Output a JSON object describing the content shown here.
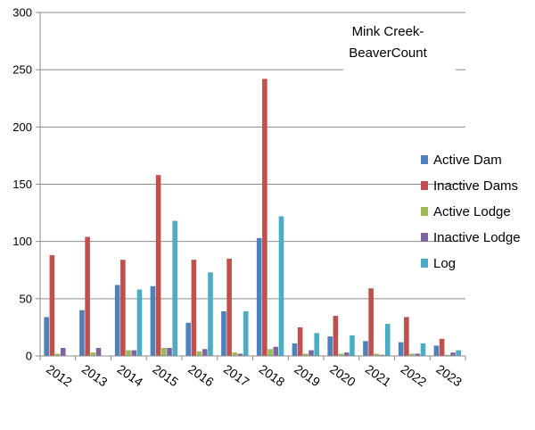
{
  "chart_data": {
    "type": "bar",
    "title_lines": [
      "Mink Creek-",
      "BeaverCount"
    ],
    "xlabel": "",
    "ylabel": "",
    "ylim": [
      0,
      300
    ],
    "yticks": [
      0,
      50,
      100,
      150,
      200,
      250,
      300
    ],
    "grid": true,
    "legend_position": "right",
    "categories": [
      "2012",
      "2013",
      "2014",
      "2015",
      "2016",
      "2017",
      "2018",
      "2019",
      "2020",
      "2021",
      "2022",
      "2023"
    ],
    "series": [
      {
        "name": "Active Dam",
        "color": "#4F81BD",
        "values": [
          34,
          40,
          62,
          61,
          29,
          39,
          103,
          11,
          17,
          13,
          12,
          9
        ]
      },
      {
        "name": "Inactive Dams",
        "color": "#C0504D",
        "values": [
          88,
          104,
          84,
          158,
          84,
          85,
          242,
          25,
          35,
          59,
          34,
          15
        ]
      },
      {
        "name": "Active Lodge",
        "color": "#9BBB59",
        "values": [
          2,
          3,
          5,
          7,
          4,
          3,
          6,
          2,
          2,
          2,
          2,
          1
        ]
      },
      {
        "name": "Inactive Lodge",
        "color": "#8064A2",
        "values": [
          7,
          7,
          5,
          7,
          6,
          2,
          8,
          5,
          3,
          1,
          2,
          3
        ]
      },
      {
        "name": "Log",
        "color": "#4BACC6",
        "values": [
          0,
          0,
          58,
          118,
          73,
          39,
          122,
          20,
          18,
          28,
          11,
          5
        ]
      }
    ]
  }
}
